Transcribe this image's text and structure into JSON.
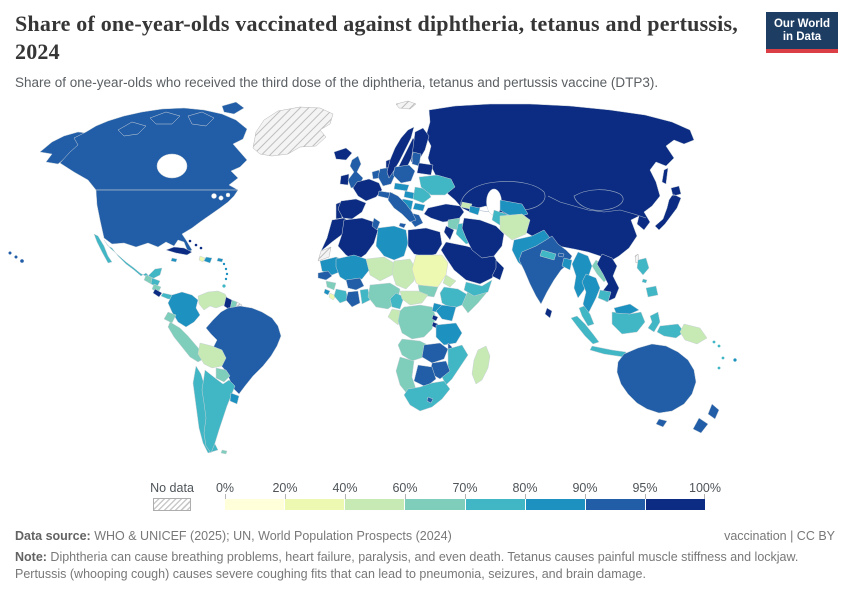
{
  "header": {
    "title": "Share of one-year-olds vaccinated against diphtheria, tetanus and pertussis, 2024",
    "subtitle": "Share of one-year-olds who received the third dose of the diphtheria, tetanus and pertussis vaccine (DTP3).",
    "logo": {
      "line1": "Our World",
      "line2": "in Data",
      "bg_color": "#1d3d63",
      "accent_color": "#dc3e45"
    }
  },
  "legend": {
    "no_data_label": "No data",
    "tick_labels": [
      "0%",
      "20%",
      "40%",
      "60%",
      "70%",
      "80%",
      "90%",
      "95%",
      "100%"
    ],
    "bin_colors": {
      "0-20": "#ffffd9",
      "20-40": "#edf8b1",
      "40-60": "#c7e9b4",
      "60-70": "#7fcdbb",
      "70-80": "#41b6c4",
      "80-90": "#1d91c0",
      "90-95": "#225ea8",
      "95-100": "#0c2c84"
    }
  },
  "chart_data": {
    "type": "choropleth_map",
    "title": "Share of one-year-olds vaccinated against diphtheria, tetanus and pertussis, 2024",
    "unit": "%",
    "year": "2024",
    "bins": [
      {
        "range": "0-20%",
        "color": "#ffffd9"
      },
      {
        "range": "20-40%",
        "color": "#edf8b1"
      },
      {
        "range": "40-60%",
        "color": "#c7e9b4"
      },
      {
        "range": "60-70%",
        "color": "#7fcdbb"
      },
      {
        "range": "70-80%",
        "color": "#41b6c4"
      },
      {
        "range": "80-90%",
        "color": "#1d91c0"
      },
      {
        "range": "90-95%",
        "color": "#225ea8"
      },
      {
        "range": "95-100%",
        "color": "#0c2c84"
      },
      {
        "range": "No data",
        "color": "hatched"
      }
    ],
    "regions": {
      "greenland": "no-data",
      "svalbard": "no-data",
      "western-sahara": "no-data",
      "french-guiana": "no-data",
      "taiwan": "no-data",
      "iceland": "95-100",
      "ireland": "95-100",
      "portugal": "95-100",
      "spain": "95-100",
      "france": "95-100",
      "denmark": "95-100",
      "norway": "95-100",
      "sweden": "95-100",
      "finland": "95-100",
      "belarus": "95-100",
      "russia-china-central-asia": "95-100",
      "russia": "95-100",
      "china": "95-100",
      "mongolia": "95-100",
      "kazakhstan": "95-100",
      "north-korea": "95-100",
      "south-korea": "95-100",
      "kyrgyzstan": "95-100",
      "tajikistan": "95-100",
      "sakhalin": "95-100",
      "morocco": "95-100",
      "algeria": "95-100",
      "egypt": "95-100",
      "israel-jordan": "95-100",
      "turkey": "95-100",
      "iran": "95-100",
      "saudi-arabia": "95-100",
      "oman": "95-100",
      "cuba": "95-100",
      "bahamas": "95-100",
      "costa-rica": "95-100",
      "guyana": "95-100",
      "rwanda": "95-100",
      "burundi": "95-100",
      "sri-lanka": "95-100",
      "vietnam": "95-100",
      "japan": "95-100",
      "canada": "90-95",
      "arctic-islands": "90-95",
      "alaska": "90-95",
      "hawaii": "90-95",
      "usa": "90-95",
      "uk": "90-95",
      "benelux": "90-95",
      "germany": "90-95",
      "poland": "90-95",
      "austria-switzerland": "90-95",
      "baltics": "90-95",
      "greece": "90-95",
      "italy": "90-95",
      "tunisia": "90-95",
      "senegal": "90-95",
      "burkina-faso": "90-95",
      "ghana": "90-95",
      "zambia": "90-95",
      "malawi": "90-95",
      "zimbabwe": "90-95",
      "botswana": "90-95",
      "lesotho": "90-95",
      "brazil": "90-95",
      "india": "90-95",
      "bhutan": "90-95",
      "australia": "90-95",
      "tasmania": "90-95",
      "new-zealand": "90-95",
      "colombia": "80-90",
      "uruguay": "80-90",
      "dominican-republic": "80-90",
      "jamaica": "80-90",
      "puerto-rico": "80-90",
      "lesser-antilles": "80-90",
      "mauritania": "80-90",
      "sierra-leone": "80-90",
      "mali": "80-90",
      "czech-slovakia": "80-90",
      "hungary": "80-90",
      "balkans": "80-90",
      "bulgaria": "80-90",
      "azerbaijan": "80-90",
      "uzbekistan": "80-90",
      "pakistan": "80-90",
      "bangladesh": "80-90",
      "myanmar": "80-90",
      "thailand": "80-90",
      "malaysia-borneo": "80-90",
      "uganda": "80-90",
      "kenya": "80-90",
      "tanzania": "80-90",
      "libya": "80-90",
      "fiji": "80-90",
      "mexico": "70-80",
      "panama": "70-80",
      "honduras": "70-80",
      "trinidad": "70-80",
      "chile": "70-80",
      "argentina": "70-80",
      "ukraine": "70-80",
      "romania": "70-80",
      "iraq": "70-80",
      "yemen": "70-80",
      "turkmenistan": "70-80",
      "nepal": "70-80",
      "cambodia": "70-80",
      "malaysia-peninsula": "70-80",
      "indonesia": "70-80",
      "philippines": "70-80",
      "ethiopia": "70-80",
      "cameroon": "70-80",
      "ivory-coast": "70-80",
      "togo-benin": "70-80",
      "mozambique": "70-80",
      "south-africa": "70-80",
      "vanuatu": "70-80",
      "solomon-islands": "70-80",
      "new-caledonia": "70-80",
      "guatemala": "60-70",
      "nicaragua": "60-70",
      "ecuador": "60-70",
      "peru": "60-70",
      "paraguay": "60-70",
      "falkland-islands": "60-70",
      "suriname": "60-70",
      "guinea": "60-70",
      "nigeria": "60-70",
      "south-sudan": "60-70",
      "somalia": "60-70",
      "drc": "60-70",
      "angola": "60-70",
      "namibia": "60-70",
      "laos": "60-70",
      "syria": "60-70",
      "timor-leste": "60-70",
      "venezuela": "40-60",
      "bolivia": "40-60",
      "niger": "40-60",
      "chad": "40-60",
      "central-african-republic": "40-60",
      "gabon-congo": "40-60",
      "madagascar": "40-60",
      "papua-new-guinea": "40-60",
      "afghanistan": "40-60",
      "georgia": "40-60",
      "eritrea": "40-60",
      "sudan": "20-40",
      "haiti": "20-40",
      "liberia": "20-40"
    }
  },
  "footer": {
    "source_label": "Data source:",
    "source_text": " WHO & UNICEF (2025); UN, World Population Prospects (2024)",
    "attribution": "vaccination | CC BY",
    "note_label": "Note:",
    "note_text": " Diphtheria can cause breathing problems, heart failure, paralysis, and even death. Tetanus causes painful muscle stiffness and lockjaw. Pertussis (whooping cough) causes severe coughing fits that can lead to pneumonia, seizures, and brain damage."
  }
}
